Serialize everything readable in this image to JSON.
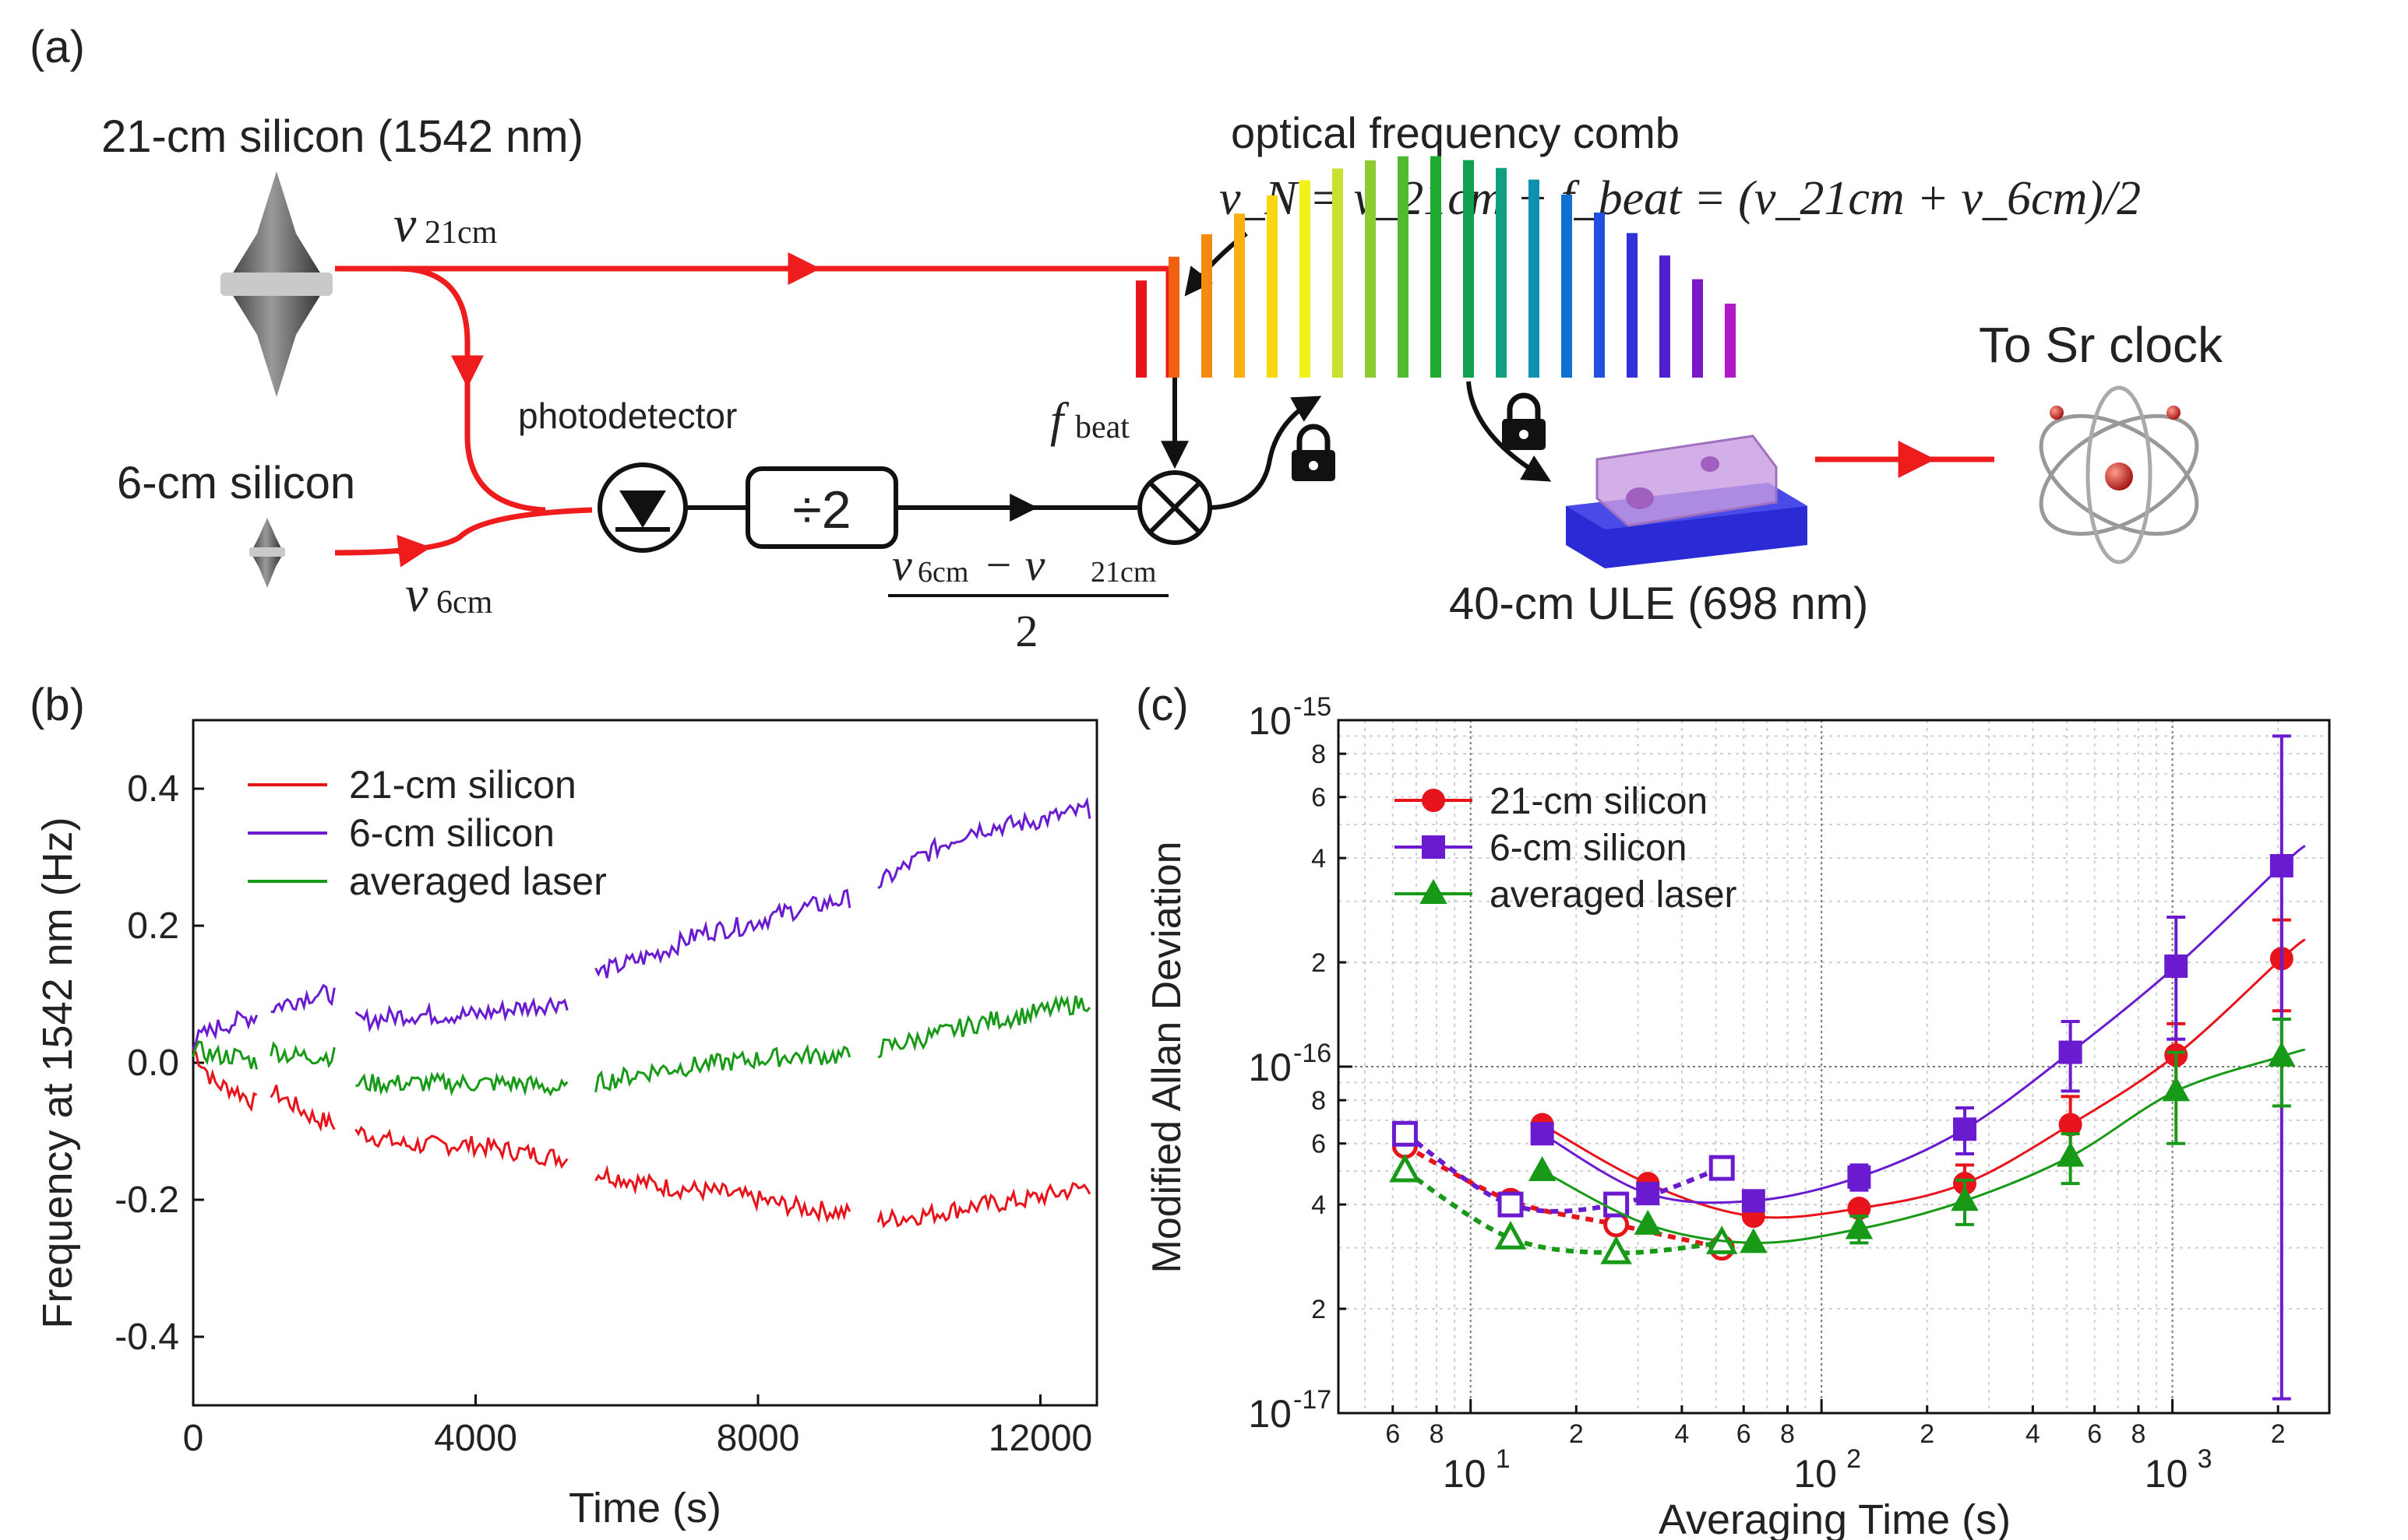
{
  "panel_labels": {
    "a": "(a)",
    "b": "(b)",
    "c": "(c)"
  },
  "diagram": {
    "laser1_label": "21-cm silicon (1542 nm)",
    "laser2_label": "6-cm silicon",
    "nu21": "ν",
    "nu21_sub": "21cm",
    "nu6": "ν",
    "nu6_sub": "6cm",
    "photodetector": "photodetector",
    "divider": "÷2",
    "fbeat": "f",
    "fbeat_sub": "beat",
    "frac_num": "ν",
    "frac_num_sub1": "6cm",
    "frac_minus": " − ν",
    "frac_num_sub2": "21cm",
    "frac_den": "2",
    "comb_title": "optical frequency comb",
    "comb_eq": "ν_N = ν_21cm + f_beat = (ν_21cm + ν_6cm)/2",
    "ule_label": "40-cm ULE (698 nm)",
    "sr_label": "To Sr clock",
    "colors": {
      "beam": "#ee1c1c",
      "line": "#111111",
      "cavity_base": "#2b2bd6",
      "cavity_glass": "#c79be0"
    }
  },
  "chart_data": [
    {
      "type": "line",
      "panel": "b",
      "xlabel": "Time (s)",
      "ylabel": "Frequency at 1542 nm (Hz)",
      "xlim": [
        0,
        12800
      ],
      "ylim": [
        -0.5,
        0.5
      ],
      "xticks": [
        0,
        4000,
        8000,
        12000
      ],
      "xtick_labels": [
        "0",
        "4000",
        "8000",
        "12000"
      ],
      "yticks": [
        -0.4,
        -0.2,
        0.0,
        0.2,
        0.4
      ],
      "ytick_labels": [
        "-0.4",
        "-0.2",
        "0.0",
        "0.2",
        "0.4"
      ],
      "legend": [
        "21-cm silicon",
        "6-cm silicon",
        "averaged laser"
      ],
      "series": [
        {
          "name": "21-cm silicon",
          "color": "#e8141c",
          "segments": [
            {
              "x": [
                0,
                300,
                600,
                900
              ],
              "y": [
                0.02,
                -0.03,
                -0.04,
                -0.06
              ]
            },
            {
              "x": [
                1100,
                1400,
                1700,
                2000
              ],
              "y": [
                -0.04,
                -0.06,
                -0.08,
                -0.09
              ]
            },
            {
              "x": [
                2300,
                3000,
                4000,
                4600,
                5300
              ],
              "y": [
                -0.1,
                -0.12,
                -0.12,
                -0.13,
                -0.14
              ]
            },
            {
              "x": [
                5700,
                6600,
                7500,
                8500,
                9300
              ],
              "y": [
                -0.16,
                -0.18,
                -0.19,
                -0.21,
                -0.22
              ]
            },
            {
              "x": [
                9700,
                10500,
                11000,
                11800,
                12700
              ],
              "y": [
                -0.23,
                -0.22,
                -0.21,
                -0.2,
                -0.18
              ]
            }
          ]
        },
        {
          "name": "6-cm silicon",
          "color": "#6a1bd0",
          "segments": [
            {
              "x": [
                0,
                300,
                600,
                900
              ],
              "y": [
                0.03,
                0.05,
                0.06,
                0.07
              ]
            },
            {
              "x": [
                1100,
                1400,
                1700,
                2000
              ],
              "y": [
                0.08,
                0.09,
                0.1,
                0.1
              ]
            },
            {
              "x": [
                2300,
                3000,
                4000,
                4600,
                5300
              ],
              "y": [
                0.06,
                0.07,
                0.07,
                0.08,
                0.09
              ]
            },
            {
              "x": [
                5700,
                6600,
                7200,
                7800,
                8400,
                9300
              ],
              "y": [
                0.13,
                0.16,
                0.19,
                0.2,
                0.22,
                0.24
              ]
            },
            {
              "x": [
                9700,
                10300,
                11000,
                11800,
                12700
              ],
              "y": [
                0.26,
                0.3,
                0.34,
                0.35,
                0.37
              ]
            }
          ]
        },
        {
          "name": "averaged laser",
          "color": "#189a18",
          "segments": [
            {
              "x": [
                0,
                300,
                600,
                900
              ],
              "y": [
                0.02,
                0.01,
                0.01,
                0.0
              ]
            },
            {
              "x": [
                1100,
                1400,
                1700,
                2000
              ],
              "y": [
                0.02,
                0.01,
                0.01,
                0.01
              ]
            },
            {
              "x": [
                2300,
                3000,
                4000,
                4600,
                5300
              ],
              "y": [
                -0.03,
                -0.03,
                -0.03,
                -0.03,
                -0.04
              ]
            },
            {
              "x": [
                5700,
                6600,
                7500,
                8500,
                9300
              ],
              "y": [
                -0.03,
                -0.01,
                0.0,
                0.01,
                0.01
              ]
            },
            {
              "x": [
                9700,
                10500,
                11200,
                11800,
                12700
              ],
              "y": [
                0.02,
                0.04,
                0.06,
                0.07,
                0.09
              ]
            }
          ]
        }
      ]
    },
    {
      "type": "scatter",
      "panel": "c",
      "xscale": "log",
      "yscale": "log",
      "xlabel": "Averaging Time (s)",
      "ylabel": "Modified Allan Deviation",
      "xlim": [
        4.2,
        2800
      ],
      "ylim": [
        1e-17,
        1e-15
      ],
      "xtick_major": [
        {
          "v": 10,
          "base": "10",
          "exp": "1"
        },
        {
          "v": 100,
          "base": "10",
          "exp": "2"
        },
        {
          "v": 1000,
          "base": "10",
          "exp": "3"
        }
      ],
      "xtick_minor": [
        {
          "v": 6,
          "t": "6"
        },
        {
          "v": 8,
          "t": "8"
        },
        {
          "v": 20,
          "t": "2"
        },
        {
          "v": 40,
          "t": "4"
        },
        {
          "v": 60,
          "t": "6"
        },
        {
          "v": 80,
          "t": "8"
        },
        {
          "v": 200,
          "t": "2"
        },
        {
          "v": 400,
          "t": "4"
        },
        {
          "v": 600,
          "t": "6"
        },
        {
          "v": 800,
          "t": "8"
        },
        {
          "v": 2000,
          "t": "2"
        }
      ],
      "ytick_major": [
        {
          "v": 1e-17,
          "base": "10",
          "exp": "-17"
        },
        {
          "v": 1e-16,
          "base": "10",
          "exp": "-16"
        },
        {
          "v": 1e-15,
          "base": "10",
          "exp": "-15"
        }
      ],
      "ytick_minor": [
        {
          "v": 2e-17,
          "t": "2"
        },
        {
          "v": 4e-17,
          "t": "4"
        },
        {
          "v": 6e-17,
          "t": "6"
        },
        {
          "v": 8e-17,
          "t": "8"
        },
        {
          "v": 2e-16,
          "t": "2"
        },
        {
          "v": 4e-16,
          "t": "4"
        },
        {
          "v": 6e-16,
          "t": "6"
        },
        {
          "v": 8e-16,
          "t": "8"
        }
      ],
      "legend": [
        "21-cm silicon",
        "6-cm silicon",
        "averaged laser"
      ],
      "series": [
        {
          "name": "21-cm silicon",
          "color": "#e8141c",
          "marker": "circle",
          "filled": {
            "x": [
              16,
              32,
              64,
              128,
              256,
              512,
              1024,
              2048
            ],
            "y": [
              6.8e-17,
              4.6e-17,
              3.7e-17,
              3.9e-17,
              4.6e-17,
              6.8e-17,
              1.08e-16,
              2.05e-16
            ],
            "err": [
              0,
              0,
              0,
              0,
              6e-18,
              1.4e-17,
              2.5e-17,
              6e-17
            ]
          },
          "open": {
            "x": [
              6.5,
              13,
              26,
              52
            ],
            "y": [
              5.9e-17,
              4.1e-17,
              3.5e-17,
              3e-17
            ]
          }
        },
        {
          "name": "6-cm silicon",
          "color": "#6a1bd0",
          "marker": "square",
          "filled": {
            "x": [
              16,
              32,
              64,
              128,
              256,
              512,
              1024,
              2048
            ],
            "y": [
              6.4e-17,
              4.3e-17,
              4.1e-17,
              4.8e-17,
              6.6e-17,
              1.1e-16,
              1.95e-16,
              3.8e-16
            ],
            "err": [
              0,
              0,
              0,
              4e-18,
              1e-17,
              2.5e-17,
              7.5e-17,
              5.2e-16
            ]
          },
          "open": {
            "x": [
              6.5,
              13,
              26,
              52
            ],
            "y": [
              6.4e-17,
              4e-17,
              4e-17,
              5.1e-17
            ]
          }
        },
        {
          "name": "averaged laser",
          "color": "#189a18",
          "marker": "triangle",
          "filled": {
            "x": [
              16,
              32,
              64,
              128,
              256,
              512,
              1024,
              2048
            ],
            "y": [
              5e-17,
              3.5e-17,
              3.1e-17,
              3.4e-17,
              4.1e-17,
              5.5e-17,
              8.5e-17,
              1.07e-16
            ],
            "err": [
              0,
              0,
              0,
              3e-18,
              6e-18,
              9e-18,
              2.5e-17,
              3e-17
            ]
          },
          "open": {
            "x": [
              6.5,
              13,
              26,
              52
            ],
            "y": [
              5e-17,
              3.2e-17,
              2.9e-17,
              3.1e-17
            ]
          }
        }
      ]
    }
  ]
}
